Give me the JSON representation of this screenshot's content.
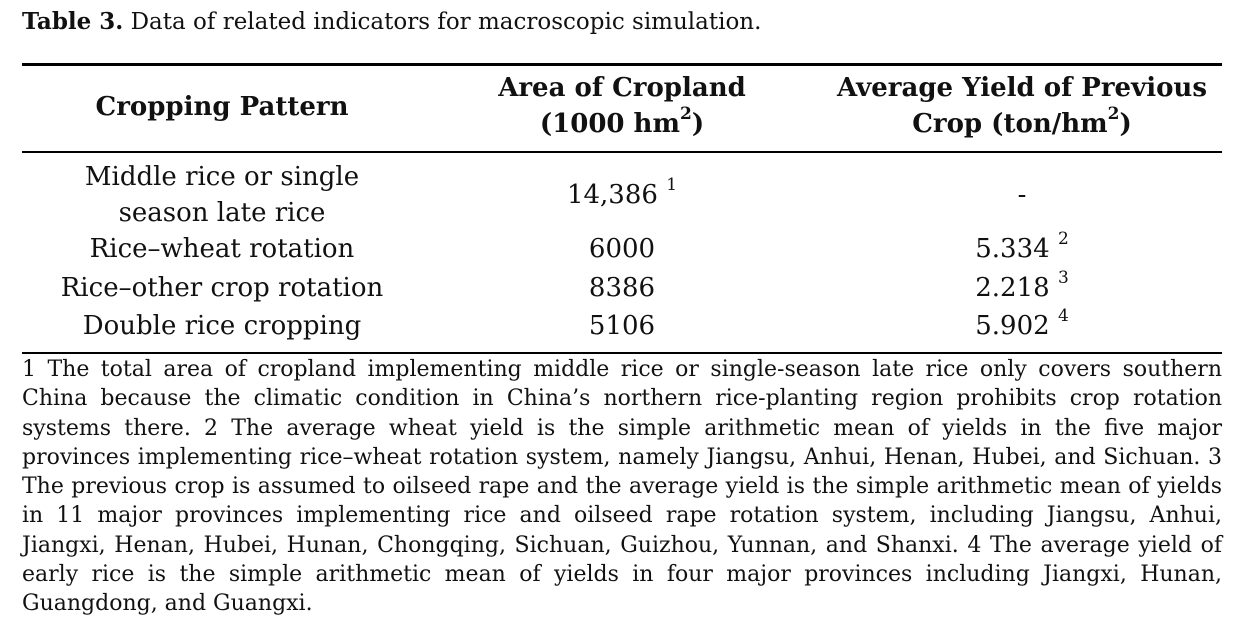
{
  "caption": {
    "label": "Table 3.",
    "text": "Data of related indicators for macroscopic simulation."
  },
  "table": {
    "headers": {
      "col1": "Cropping Pattern",
      "col2_line1": "Area of Cropland",
      "col2_line2_pre": "(1000 hm",
      "col2_line2_sup": "2",
      "col2_line2_post": ")",
      "col3_line1": "Average Yield of Previous",
      "col3_line2_pre": "Crop (ton/hm",
      "col3_line2_sup": "2",
      "col3_line2_post": ")"
    },
    "rows": [
      {
        "pattern_line1": "Middle rice or single",
        "pattern_line2": "season late rice",
        "area": "14,386",
        "area_note": "1",
        "yield": "-",
        "yield_note": ""
      },
      {
        "pattern": "Rice–wheat rotation",
        "area": "6000",
        "yield": "5.334",
        "yield_note": "2"
      },
      {
        "pattern": "Rice–other crop rotation",
        "area": "8386",
        "yield": "2.218",
        "yield_note": "3"
      },
      {
        "pattern": "Double rice cropping",
        "area": "5106",
        "yield": "5.902",
        "yield_note": "4"
      }
    ]
  },
  "footnote": "1 The total area of cropland implementing middle rice or single-season late rice only covers southern China because the climatic condition in China’s northern rice-planting region prohibits crop rotation systems there. 2 The average wheat yield is the simple arithmetic mean of yields in the five major provinces implementing rice–wheat rotation system, namely Jiangsu, Anhui, Henan, Hubei, and Sichuan. 3 The previous crop is assumed to oilseed rape and the average yield is the simple arithmetic mean of yields in 11 major provinces implementing rice and oilseed rape rotation system, including Jiangsu, Anhui, Jiangxi, Henan, Hubei, Hunan, Chongqing, Sichuan, Guizhou, Yunnan, and Shanxi. 4 The average yield of early rice is the simple arithmetic mean of yields in four major provinces including Jiangxi, Hunan, Guangdong, and Guangxi."
}
